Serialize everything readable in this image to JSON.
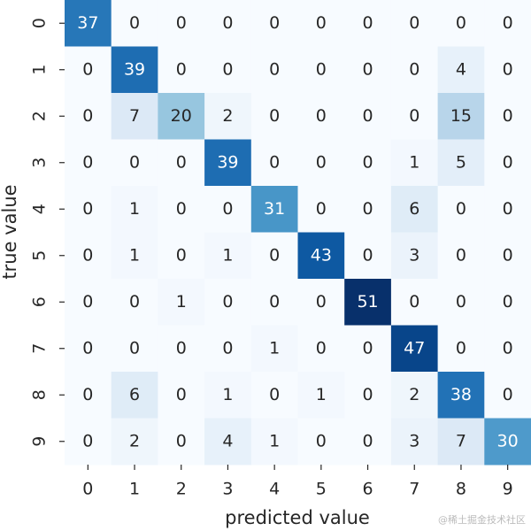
{
  "chart_data": {
    "type": "heatmap",
    "xlabel": "predicted value",
    "ylabel": "true value",
    "x_categories": [
      "0",
      "1",
      "2",
      "3",
      "4",
      "5",
      "6",
      "7",
      "8",
      "9"
    ],
    "y_categories": [
      "0",
      "1",
      "2",
      "3",
      "4",
      "5",
      "6",
      "7",
      "8",
      "9"
    ],
    "colormap": "Blues",
    "values": [
      [
        37,
        0,
        0,
        0,
        0,
        0,
        0,
        0,
        0,
        0
      ],
      [
        0,
        39,
        0,
        0,
        0,
        0,
        0,
        0,
        4,
        0
      ],
      [
        0,
        7,
        20,
        2,
        0,
        0,
        0,
        0,
        15,
        0
      ],
      [
        0,
        0,
        0,
        39,
        0,
        0,
        0,
        1,
        5,
        0
      ],
      [
        0,
        1,
        0,
        0,
        31,
        0,
        0,
        6,
        0,
        0
      ],
      [
        0,
        1,
        0,
        1,
        0,
        43,
        0,
        3,
        0,
        0
      ],
      [
        0,
        0,
        1,
        0,
        0,
        0,
        51,
        0,
        0,
        0
      ],
      [
        0,
        0,
        0,
        0,
        1,
        0,
        0,
        47,
        0,
        0
      ],
      [
        0,
        6,
        0,
        1,
        0,
        1,
        0,
        2,
        38,
        0
      ],
      [
        0,
        2,
        0,
        4,
        1,
        0,
        0,
        3,
        7,
        30
      ]
    ]
  },
  "watermark": "@稀土掘金技术社区"
}
